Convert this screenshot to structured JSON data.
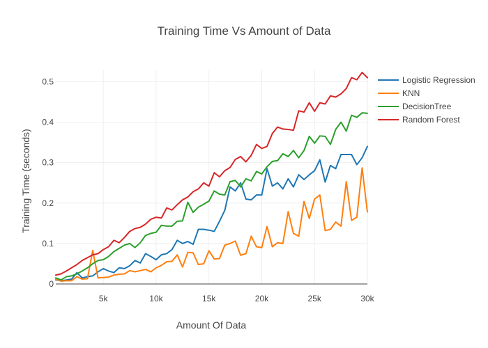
{
  "chart_data": {
    "type": "line",
    "title": "Training Time Vs Amount of Data",
    "xlabel": "Amount Of Data",
    "ylabel": "Training Time (seconds)",
    "xlim": [
      500,
      30000
    ],
    "ylim": [
      0,
      0.53
    ],
    "x_ticks": [
      5000,
      10000,
      15000,
      20000,
      25000,
      30000
    ],
    "x_tick_labels": [
      "5k",
      "10k",
      "15k",
      "20k",
      "25k",
      "30k"
    ],
    "y_ticks": [
      0,
      0.1,
      0.2,
      0.3,
      0.4,
      0.5
    ],
    "y_tick_labels": [
      "0",
      "0.1",
      "0.2",
      "0.3",
      "0.4",
      "0.5"
    ],
    "grid": true,
    "legend_position": "top-right",
    "x": [
      500,
      1000,
      1500,
      2000,
      2500,
      3000,
      3500,
      4000,
      4500,
      5000,
      5500,
      6000,
      6500,
      7000,
      7500,
      8000,
      8500,
      9000,
      9500,
      10000,
      10500,
      11000,
      11500,
      12000,
      12500,
      13000,
      13500,
      14000,
      14500,
      15000,
      15500,
      16000,
      16500,
      17000,
      17500,
      18000,
      18500,
      19000,
      19500,
      20000,
      20500,
      21000,
      21500,
      22000,
      22500,
      23000,
      23500,
      24000,
      24500,
      25000,
      25500,
      26000,
      26500,
      27000,
      27500,
      28000,
      28500,
      29000,
      29500,
      30000
    ],
    "series": [
      {
        "name": "Logistic Regression",
        "color": "#1f77b4",
        "values": [
          0.01,
          0.008,
          0.01,
          0.012,
          0.028,
          0.015,
          0.018,
          0.02,
          0.03,
          0.038,
          0.032,
          0.028,
          0.04,
          0.038,
          0.045,
          0.058,
          0.052,
          0.075,
          0.068,
          0.06,
          0.072,
          0.075,
          0.085,
          0.108,
          0.1,
          0.105,
          0.098,
          0.135,
          0.135,
          0.133,
          0.13,
          0.155,
          0.182,
          0.24,
          0.23,
          0.25,
          0.21,
          0.208,
          0.22,
          0.22,
          0.285,
          0.242,
          0.25,
          0.235,
          0.26,
          0.24,
          0.27,
          0.258,
          0.27,
          0.28,
          0.307,
          0.252,
          0.293,
          0.285,
          0.32,
          0.32,
          0.32,
          0.295,
          0.312,
          0.34
        ]
      },
      {
        "name": "KNN",
        "color": "#ff7f0e",
        "values": [
          0.012,
          0.007,
          0.008,
          0.008,
          0.018,
          0.012,
          0.013,
          0.083,
          0.015,
          0.016,
          0.017,
          0.022,
          0.024,
          0.025,
          0.033,
          0.03,
          0.033,
          0.036,
          0.03,
          0.04,
          0.046,
          0.055,
          0.056,
          0.072,
          0.042,
          0.078,
          0.077,
          0.048,
          0.05,
          0.082,
          0.062,
          0.063,
          0.096,
          0.1,
          0.106,
          0.071,
          0.075,
          0.118,
          0.092,
          0.09,
          0.142,
          0.092,
          0.102,
          0.1,
          0.179,
          0.125,
          0.118,
          0.204,
          0.162,
          0.21,
          0.22,
          0.132,
          0.135,
          0.153,
          0.143,
          0.253,
          0.157,
          0.165,
          0.287,
          0.178
        ]
      },
      {
        "name": "DecisionTree",
        "color": "#2ca02c",
        "values": [
          0.015,
          0.01,
          0.018,
          0.02,
          0.025,
          0.032,
          0.04,
          0.05,
          0.058,
          0.06,
          0.068,
          0.08,
          0.088,
          0.096,
          0.1,
          0.09,
          0.102,
          0.12,
          0.125,
          0.128,
          0.145,
          0.143,
          0.143,
          0.155,
          0.156,
          0.202,
          0.177,
          0.19,
          0.197,
          0.205,
          0.23,
          0.222,
          0.22,
          0.253,
          0.256,
          0.24,
          0.26,
          0.255,
          0.278,
          0.272,
          0.29,
          0.303,
          0.305,
          0.322,
          0.315,
          0.33,
          0.312,
          0.33,
          0.365,
          0.348,
          0.366,
          0.365,
          0.345,
          0.382,
          0.4,
          0.378,
          0.417,
          0.412,
          0.423,
          0.422
        ]
      },
      {
        "name": "Random Forest",
        "color": "#d62728",
        "values": [
          0.022,
          0.025,
          0.032,
          0.04,
          0.048,
          0.058,
          0.065,
          0.072,
          0.075,
          0.085,
          0.092,
          0.108,
          0.102,
          0.115,
          0.13,
          0.137,
          0.14,
          0.148,
          0.16,
          0.165,
          0.163,
          0.188,
          0.183,
          0.196,
          0.208,
          0.215,
          0.228,
          0.235,
          0.25,
          0.242,
          0.275,
          0.265,
          0.28,
          0.288,
          0.308,
          0.315,
          0.302,
          0.318,
          0.345,
          0.335,
          0.34,
          0.372,
          0.388,
          0.383,
          0.382,
          0.38,
          0.428,
          0.425,
          0.448,
          0.427,
          0.448,
          0.445,
          0.465,
          0.462,
          0.47,
          0.483,
          0.51,
          0.505,
          0.523,
          0.51
        ]
      }
    ]
  }
}
